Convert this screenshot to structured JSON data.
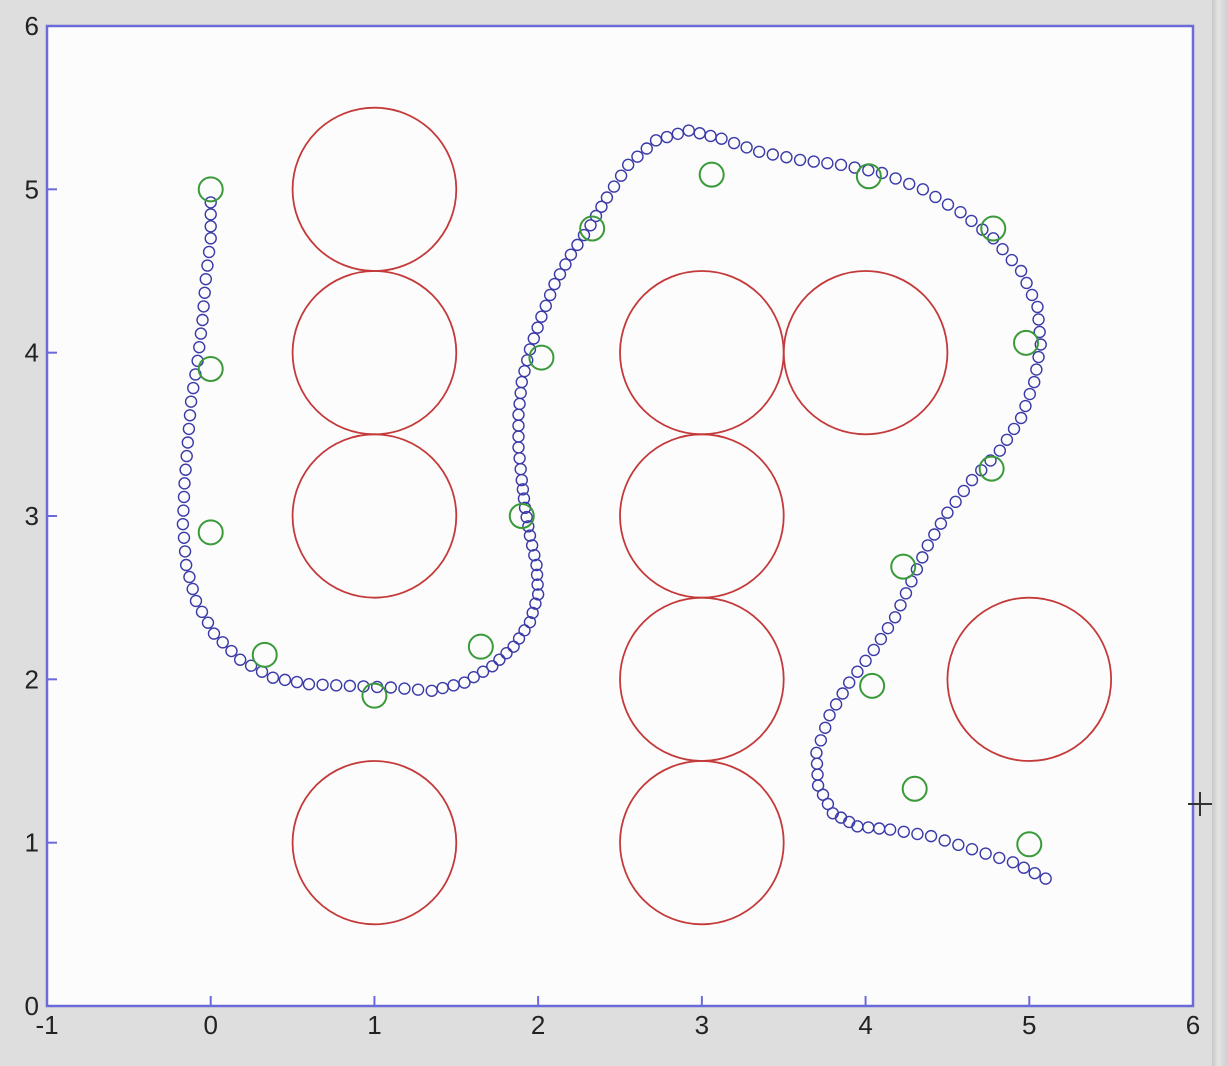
{
  "colors": {
    "obstacle": "#c43a3a",
    "path": "#3a3aa8",
    "waypoint": "#3a9a3a",
    "axes": "#6a6ad8",
    "plot_background": "#fcfcfc"
  },
  "chart_data": {
    "type": "scatter",
    "title": "",
    "xlabel": "",
    "ylabel": "",
    "xlim": [
      -1,
      6
    ],
    "ylim": [
      0,
      6
    ],
    "grid": false,
    "x_ticks": [
      "-1",
      "0",
      "1",
      "2",
      "3",
      "4",
      "5",
      "6"
    ],
    "y_ticks": [
      "0",
      "1",
      "2",
      "3",
      "4",
      "5",
      "6"
    ],
    "obstacles": {
      "shape": "circle",
      "radius": 0.5,
      "centers": [
        [
          1,
          5
        ],
        [
          1,
          4
        ],
        [
          1,
          3
        ],
        [
          1,
          1
        ],
        [
          3,
          4
        ],
        [
          3,
          3
        ],
        [
          3,
          2
        ],
        [
          3,
          1
        ],
        [
          4,
          4
        ],
        [
          5,
          2
        ]
      ]
    },
    "waypoints": [
      [
        0,
        5
      ],
      [
        0,
        3.9
      ],
      [
        0,
        2.9
      ],
      [
        0.33,
        2.15
      ],
      [
        1,
        1.9
      ],
      [
        1.65,
        2.2
      ],
      [
        1.9,
        3.0
      ],
      [
        2.02,
        3.97
      ],
      [
        2.33,
        4.76
      ],
      [
        3.06,
        5.09
      ],
      [
        4.02,
        5.08
      ],
      [
        4.78,
        4.76
      ],
      [
        4.98,
        4.06
      ],
      [
        4.77,
        3.29
      ],
      [
        4.23,
        2.69
      ],
      [
        4.04,
        1.96
      ],
      [
        4.3,
        1.33
      ],
      [
        5.0,
        0.99
      ]
    ],
    "path": [
      [
        0,
        4.92
      ],
      [
        0,
        4.7
      ],
      [
        -0.03,
        4.45
      ],
      [
        -0.05,
        4.2
      ],
      [
        -0.08,
        3.95
      ],
      [
        -0.12,
        3.7
      ],
      [
        -0.14,
        3.45
      ],
      [
        -0.16,
        3.2
      ],
      [
        -0.17,
        2.95
      ],
      [
        -0.15,
        2.7
      ],
      [
        -0.09,
        2.48
      ],
      [
        0.02,
        2.28
      ],
      [
        0.18,
        2.12
      ],
      [
        0.38,
        2.01
      ],
      [
        0.6,
        1.97
      ],
      [
        0.85,
        1.96
      ],
      [
        1.1,
        1.95
      ],
      [
        1.35,
        1.93
      ],
      [
        1.55,
        1.98
      ],
      [
        1.72,
        2.08
      ],
      [
        1.85,
        2.2
      ],
      [
        1.95,
        2.35
      ],
      [
        2.0,
        2.52
      ],
      [
        1.99,
        2.7
      ],
      [
        1.95,
        2.88
      ],
      [
        1.92,
        3.05
      ],
      [
        1.9,
        3.22
      ],
      [
        1.88,
        3.42
      ],
      [
        1.88,
        3.62
      ],
      [
        1.9,
        3.82
      ],
      [
        1.95,
        4.02
      ],
      [
        2.02,
        4.22
      ],
      [
        2.1,
        4.42
      ],
      [
        2.2,
        4.6
      ],
      [
        2.32,
        4.78
      ],
      [
        2.42,
        4.95
      ],
      [
        2.55,
        5.15
      ],
      [
        2.72,
        5.3
      ],
      [
        2.92,
        5.36
      ],
      [
        3.12,
        5.31
      ],
      [
        3.35,
        5.23
      ],
      [
        3.6,
        5.18
      ],
      [
        3.85,
        5.15
      ],
      [
        4.1,
        5.1
      ],
      [
        4.35,
        5.0
      ],
      [
        4.58,
        4.86
      ],
      [
        4.78,
        4.7
      ],
      [
        4.95,
        4.5
      ],
      [
        5.05,
        4.28
      ],
      [
        5.07,
        4.05
      ],
      [
        5.03,
        3.82
      ],
      [
        4.95,
        3.6
      ],
      [
        4.82,
        3.4
      ],
      [
        4.65,
        3.22
      ],
      [
        4.5,
        3.02
      ],
      [
        4.38,
        2.82
      ],
      [
        4.28,
        2.6
      ],
      [
        4.18,
        2.38
      ],
      [
        4.05,
        2.18
      ],
      [
        3.9,
        1.98
      ],
      [
        3.78,
        1.78
      ],
      [
        3.7,
        1.55
      ],
      [
        3.71,
        1.35
      ],
      [
        3.8,
        1.18
      ],
      [
        3.95,
        1.1
      ],
      [
        4.15,
        1.08
      ],
      [
        4.4,
        1.04
      ],
      [
        4.65,
        0.96
      ],
      [
        4.9,
        0.88
      ],
      [
        5.1,
        0.78
      ]
    ]
  }
}
